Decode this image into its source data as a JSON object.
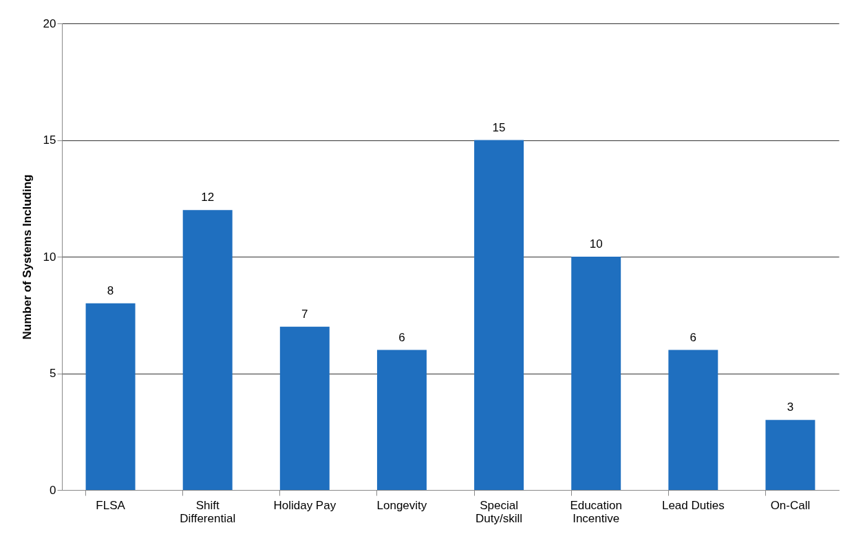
{
  "chart_data": {
    "type": "bar",
    "ylabel": "Number of Systems Including",
    "categories": [
      "FLSA",
      "Shift Differential",
      "Holiday Pay",
      "Longevity",
      "Special Duty/skill",
      "Education Incentive",
      "Lead Duties",
      "On-Call"
    ],
    "values": [
      8,
      12,
      7,
      6,
      15,
      10,
      6,
      3
    ],
    "color": "#1f6fbf",
    "ylim": [
      0,
      20
    ],
    "yticks": [
      0,
      5,
      10,
      15,
      20
    ],
    "grid": "y",
    "data_labels": true
  }
}
